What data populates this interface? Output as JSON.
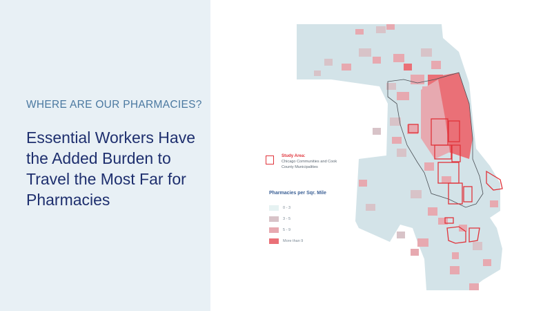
{
  "slide": {
    "eyebrow": "WHERE ARE OUR PHARMACIES?",
    "headline": "Essential Workers Have the Added Burden to Travel the Most Far for Pharmacies"
  },
  "legend": {
    "study_area_title": "Study Area:",
    "study_area_desc": "Chicago Communities and Cook County Municipalities",
    "density_title": "Pharmacies per Sqr. Mile",
    "classes": [
      {
        "label": "0 - 3",
        "color": "#e6f2f2"
      },
      {
        "label": "3 - 5",
        "color": "#d8c3c8"
      },
      {
        "label": "5 - 9",
        "color": "#e7a9b0"
      },
      {
        "label": "More than 9",
        "color": "#ea7077"
      }
    ]
  },
  "colors": {
    "panel": "#e8f0f5",
    "map_base": "#d3e3e8",
    "study_outline": "#e0333a",
    "headline": "#1e2f6e",
    "eyebrow": "#4a78a0"
  }
}
